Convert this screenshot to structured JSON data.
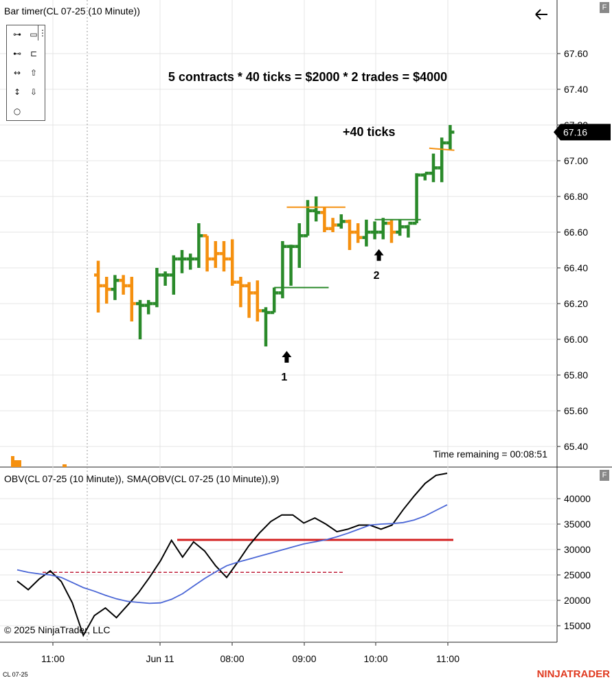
{
  "window": {
    "indicator_label": "Bar timer(CL 07-25 (10 Minute))",
    "time_remaining": "Time remaining = 00:08:51",
    "copyright": "© 2025 NinjaTrader, LLC",
    "instrument_tag": "CL 07-25",
    "brand": "NINJATRADER",
    "back_icon": "arrow-left-icon",
    "panel_button_label": "F"
  },
  "toolbox": {
    "tools": [
      {
        "name": "line-tool-icon",
        "glyph": "⊶"
      },
      {
        "name": "rectangle-tool-icon",
        "glyph": "▭"
      },
      {
        "name": "ray-tool-icon",
        "glyph": "⊷"
      },
      {
        "name": "text-tool-icon",
        "glyph": "⊏"
      },
      {
        "name": "extended-line-tool-icon",
        "glyph": "↔"
      },
      {
        "name": "arrow-up-tool-icon",
        "glyph": "⇧"
      },
      {
        "name": "vertical-line-tool-icon",
        "glyph": "↕"
      },
      {
        "name": "arrow-down-tool-icon",
        "glyph": "⇩"
      },
      {
        "name": "ellipse-tool-icon",
        "glyph": "○"
      }
    ],
    "more_glyph": "⋮"
  },
  "chart_data": [
    {
      "type": "bar",
      "style": "ohlc",
      "title": "",
      "annotations": {
        "headline": "5 contracts * 40 ticks = $2000 * 2 trades = $4000",
        "profit": "+40 ticks",
        "entry1_label": "1",
        "entry2_label": "2"
      },
      "y_ticks": [
        "67.60",
        "67.40",
        "67.20",
        "67.00",
        "66.80",
        "66.60",
        "66.40",
        "66.20",
        "66.00",
        "65.80",
        "65.60",
        "65.40"
      ],
      "ylim": [
        65.3,
        67.8
      ],
      "last_price": "67.16",
      "colors": {
        "up": "#2a8a2a",
        "down": "#f5900f",
        "last_price_box": "#000000"
      },
      "bars": [
        {
          "o": 66.36,
          "h": 66.44,
          "l": 66.15,
          "c": 66.3,
          "d": "down"
        },
        {
          "o": 66.3,
          "h": 66.35,
          "l": 66.2,
          "c": 66.28,
          "d": "down"
        },
        {
          "o": 66.28,
          "h": 66.36,
          "l": 66.22,
          "c": 66.33,
          "d": "up"
        },
        {
          "o": 66.33,
          "h": 66.36,
          "l": 66.25,
          "c": 66.3,
          "d": "down"
        },
        {
          "o": 66.3,
          "h": 66.35,
          "l": 66.1,
          "c": 66.2,
          "d": "down"
        },
        {
          "o": 66.2,
          "h": 66.22,
          "l": 66.0,
          "c": 66.19,
          "d": "up"
        },
        {
          "o": 66.19,
          "h": 66.22,
          "l": 66.14,
          "c": 66.2,
          "d": "up"
        },
        {
          "o": 66.2,
          "h": 66.4,
          "l": 66.18,
          "c": 66.36,
          "d": "up"
        },
        {
          "o": 66.36,
          "h": 66.38,
          "l": 66.3,
          "c": 66.36,
          "d": "up"
        },
        {
          "o": 66.36,
          "h": 66.47,
          "l": 66.25,
          "c": 66.45,
          "d": "up"
        },
        {
          "o": 66.45,
          "h": 66.5,
          "l": 66.37,
          "c": 66.45,
          "d": "up"
        },
        {
          "o": 66.45,
          "h": 66.48,
          "l": 66.39,
          "c": 66.45,
          "d": "up"
        },
        {
          "o": 66.45,
          "h": 66.65,
          "l": 66.4,
          "c": 66.58,
          "d": "up"
        },
        {
          "o": 66.58,
          "h": 66.58,
          "l": 66.38,
          "c": 66.45,
          "d": "down"
        },
        {
          "o": 66.45,
          "h": 66.55,
          "l": 66.4,
          "c": 66.48,
          "d": "down"
        },
        {
          "o": 66.48,
          "h": 66.55,
          "l": 66.38,
          "c": 66.45,
          "d": "down"
        },
        {
          "o": 66.45,
          "h": 66.56,
          "l": 66.3,
          "c": 66.32,
          "d": "down"
        },
        {
          "o": 66.32,
          "h": 66.35,
          "l": 66.18,
          "c": 66.3,
          "d": "down"
        },
        {
          "o": 66.3,
          "h": 66.32,
          "l": 66.12,
          "c": 66.26,
          "d": "down"
        },
        {
          "o": 66.26,
          "h": 66.33,
          "l": 66.1,
          "c": 66.16,
          "d": "down"
        },
        {
          "o": 66.16,
          "h": 66.18,
          "l": 65.96,
          "c": 66.15,
          "d": "up"
        },
        {
          "o": 66.15,
          "h": 66.29,
          "l": 66.15,
          "c": 66.26,
          "d": "up"
        },
        {
          "o": 66.26,
          "h": 66.55,
          "l": 66.23,
          "c": 66.52,
          "d": "up"
        },
        {
          "o": 66.52,
          "h": 66.53,
          "l": 66.3,
          "c": 66.52,
          "d": "up"
        },
        {
          "o": 66.52,
          "h": 66.65,
          "l": 66.4,
          "c": 66.58,
          "d": "up"
        },
        {
          "o": 66.58,
          "h": 66.78,
          "l": 66.58,
          "c": 66.72,
          "d": "up"
        },
        {
          "o": 66.72,
          "h": 66.8,
          "l": 66.66,
          "c": 66.71,
          "d": "up"
        },
        {
          "o": 66.71,
          "h": 66.74,
          "l": 66.6,
          "c": 66.62,
          "d": "down"
        },
        {
          "o": 66.62,
          "h": 66.68,
          "l": 66.6,
          "c": 66.64,
          "d": "down"
        },
        {
          "o": 66.64,
          "h": 66.7,
          "l": 66.62,
          "c": 66.66,
          "d": "up"
        },
        {
          "o": 66.66,
          "h": 66.67,
          "l": 66.5,
          "c": 66.6,
          "d": "down"
        },
        {
          "o": 66.6,
          "h": 66.65,
          "l": 66.54,
          "c": 66.57,
          "d": "down"
        },
        {
          "o": 66.57,
          "h": 66.67,
          "l": 66.52,
          "c": 66.6,
          "d": "up"
        },
        {
          "o": 66.6,
          "h": 66.66,
          "l": 66.56,
          "c": 66.6,
          "d": "up"
        },
        {
          "o": 66.6,
          "h": 66.68,
          "l": 66.56,
          "c": 66.65,
          "d": "up"
        },
        {
          "o": 66.65,
          "h": 66.67,
          "l": 66.54,
          "c": 66.6,
          "d": "down"
        },
        {
          "o": 66.6,
          "h": 66.67,
          "l": 66.58,
          "c": 66.63,
          "d": "up"
        },
        {
          "o": 66.63,
          "h": 66.64,
          "l": 66.57,
          "c": 66.65,
          "d": "up"
        },
        {
          "o": 66.65,
          "h": 66.93,
          "l": 66.65,
          "c": 66.92,
          "d": "up"
        },
        {
          "o": 66.92,
          "h": 66.93,
          "l": 66.89,
          "c": 66.93,
          "d": "up"
        },
        {
          "o": 66.93,
          "h": 67.04,
          "l": 66.88,
          "c": 66.96,
          "d": "up"
        },
        {
          "o": 66.96,
          "h": 67.13,
          "l": 66.88,
          "c": 67.1,
          "d": "up"
        },
        {
          "o": 67.1,
          "h": 67.2,
          "l": 67.06,
          "c": 67.16,
          "d": "up"
        }
      ],
      "trade_lines": [
        {
          "from_bar": 21,
          "to_bar": 27.5,
          "price": 66.29,
          "color": "#2a8a2a"
        },
        {
          "from_bar": 22.5,
          "to_bar": 29.5,
          "price": 66.74,
          "color": "#f5900f"
        },
        {
          "from_bar": 33,
          "to_bar": 38.5,
          "price": 66.67,
          "color": "#2a8a2a"
        },
        {
          "from_bar": 39.5,
          "to_bar": 42.5,
          "price": 67.07,
          "color": "#f5900f"
        }
      ],
      "entry_arrows": [
        {
          "bar": 22,
          "price": 65.9,
          "label_key": "entry1_label"
        },
        {
          "bar": 33,
          "price": 66.47,
          "label_key": "entry2_label"
        }
      ]
    },
    {
      "type": "line",
      "title": "OBV(CL 07-25 (10 Minute)), SMA(OBV(CL 07-25 (10 Minute)),9)",
      "y_ticks": [
        "40000",
        "35000",
        "30000",
        "25000",
        "20000",
        "15000"
      ],
      "ylim": [
        13000,
        45500
      ],
      "x_ticks": [
        "11:00",
        "Jun 11",
        "08:00",
        "09:00",
        "10:00",
        "11:00"
      ],
      "series": [
        {
          "color": "#000000",
          "values": [
            23800,
            22100,
            24200,
            25800,
            23700,
            19500,
            13100,
            17000,
            18500,
            16600,
            19000,
            21500,
            24500,
            27800,
            31800,
            28500,
            31500,
            29700,
            26800,
            24500,
            27500,
            30700,
            33300,
            35500,
            36800,
            36800,
            35200,
            36200,
            35000,
            33500,
            34000,
            34800,
            34800,
            34000,
            34800,
            37800,
            40500,
            43000,
            44600,
            45000
          ]
        },
        {
          "color": "#4a66d6",
          "values": [
            26000,
            25500,
            25200,
            25000,
            24500,
            23500,
            22500,
            21800,
            21000,
            20300,
            19800,
            19600,
            19400,
            19500,
            20200,
            21300,
            22800,
            24300,
            25600,
            26800,
            27500,
            28100,
            28700,
            29300,
            29900,
            30500,
            31100,
            31500,
            31900,
            32500,
            33200,
            34000,
            34800,
            35000,
            35100,
            35300,
            35800,
            36600,
            37700,
            38800
          ]
        }
      ],
      "levels": [
        {
          "value": 31900,
          "color": "#d32020",
          "style": "solid",
          "from_index": 14,
          "to_index": 39
        },
        {
          "value": 25500,
          "color": "#c0203a",
          "style": "dashed",
          "from_index": 2,
          "to_index": 29
        }
      ]
    }
  ]
}
